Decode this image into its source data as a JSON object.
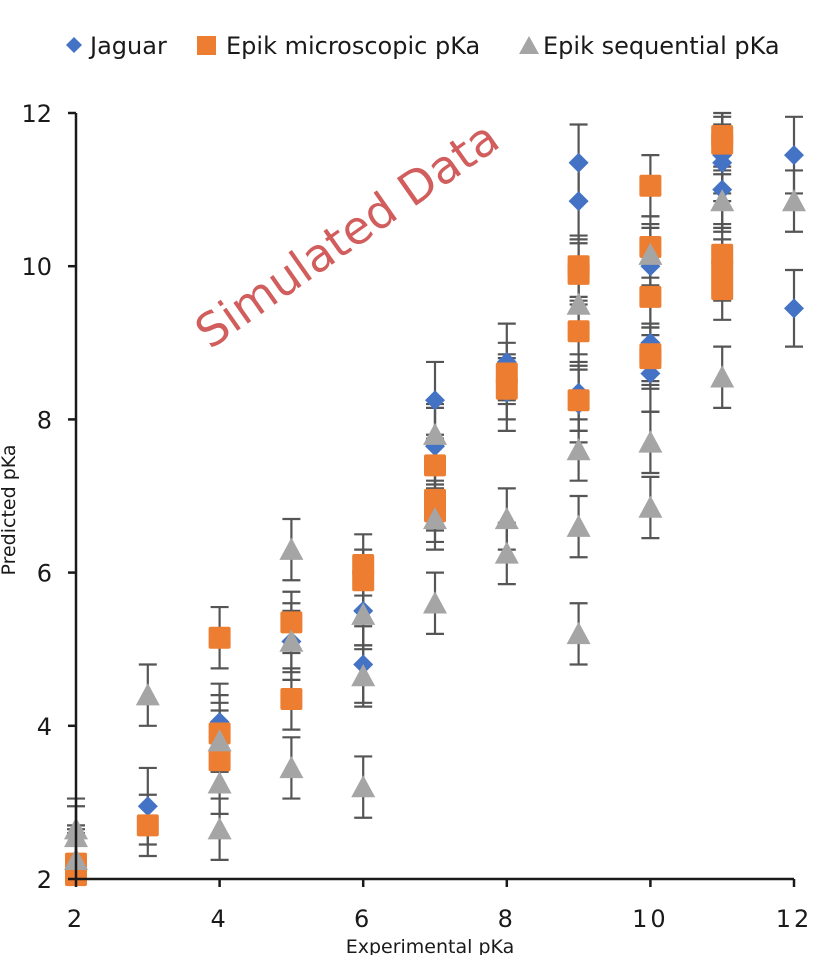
{
  "chart_data": {
    "type": "scatter",
    "title": "",
    "xlabel": "Experimental pKa",
    "ylabel": "Predicted pKa",
    "xlim": [
      2,
      12
    ],
    "ylim": [
      2,
      12
    ],
    "x_ticks": [
      "2",
      "4",
      "6",
      "8",
      "10",
      "12"
    ],
    "y_ticks": [
      "2",
      "4",
      "6",
      "8",
      "10",
      "12"
    ],
    "grid": false,
    "legend_position": "top",
    "watermark": "Simulated Data",
    "series": [
      {
        "name": "Jaguar",
        "color": "#4472c4",
        "marker": "diamond",
        "points": [
          {
            "x": 2,
            "y": 2.2,
            "err": 0.5
          },
          {
            "x": 3,
            "y": 2.95,
            "err": 0.5
          },
          {
            "x": 4,
            "y": 3.9,
            "err": 0.5
          },
          {
            "x": 4,
            "y": 4.05,
            "err": 0.5
          },
          {
            "x": 5,
            "y": 5.1,
            "err": 0.5
          },
          {
            "x": 6,
            "y": 4.8,
            "err": 0.5
          },
          {
            "x": 6,
            "y": 5.5,
            "err": 0.5
          },
          {
            "x": 7,
            "y": 7.65,
            "err": 0.5
          },
          {
            "x": 7,
            "y": 8.25,
            "err": 0.5
          },
          {
            "x": 8,
            "y": 8.75,
            "err": 0.5
          },
          {
            "x": 8,
            "y": 8.35,
            "err": 0.5
          },
          {
            "x": 9,
            "y": 11.35,
            "err": 0.5
          },
          {
            "x": 9,
            "y": 10.85,
            "err": 0.5
          },
          {
            "x": 9,
            "y": 8.35,
            "err": 0.5
          },
          {
            "x": 9,
            "y": 8.2,
            "err": 0.5
          },
          {
            "x": 10,
            "y": 10.0,
            "err": 0.5
          },
          {
            "x": 10,
            "y": 9.0,
            "err": 0.5
          },
          {
            "x": 10,
            "y": 8.6,
            "err": 0.5
          },
          {
            "x": 11,
            "y": 11.45,
            "err": 0.5
          },
          {
            "x": 11,
            "y": 11.35,
            "err": 0.5
          },
          {
            "x": 11,
            "y": 11.0,
            "err": 0.5
          },
          {
            "x": 12,
            "y": 11.45,
            "err": 0.5
          },
          {
            "x": 12,
            "y": 9.45,
            "err": 0.5
          }
        ]
      },
      {
        "name": "Epik microscopic pKa",
        "color": "#ed7d31",
        "marker": "square",
        "points": [
          {
            "x": 2,
            "y": 2.2,
            "err": 0.4
          },
          {
            "x": 2,
            "y": 2.05,
            "err": 0.4
          },
          {
            "x": 3,
            "y": 2.7,
            "err": 0.4
          },
          {
            "x": 4,
            "y": 5.15,
            "err": 0.4
          },
          {
            "x": 4,
            "y": 3.9,
            "err": 0.4
          },
          {
            "x": 4,
            "y": 3.55,
            "err": 0.4
          },
          {
            "x": 5,
            "y": 5.35,
            "err": 0.4
          },
          {
            "x": 5,
            "y": 4.35,
            "err": 0.4
          },
          {
            "x": 6,
            "y": 6.1,
            "err": 0.4
          },
          {
            "x": 6,
            "y": 5.9,
            "err": 0.4
          },
          {
            "x": 7,
            "y": 7.4,
            "err": 0.4
          },
          {
            "x": 7,
            "y": 6.95,
            "err": 0.4
          },
          {
            "x": 7,
            "y": 6.8,
            "err": 0.4
          },
          {
            "x": 8,
            "y": 8.6,
            "err": 0.4
          },
          {
            "x": 8,
            "y": 8.4,
            "err": 0.4
          },
          {
            "x": 9,
            "y": 10.0,
            "err": 0.4
          },
          {
            "x": 9,
            "y": 9.9,
            "err": 0.4
          },
          {
            "x": 9,
            "y": 9.15,
            "err": 0.4
          },
          {
            "x": 9,
            "y": 8.25,
            "err": 0.4
          },
          {
            "x": 10,
            "y": 11.05,
            "err": 0.4
          },
          {
            "x": 10,
            "y": 10.25,
            "err": 0.4
          },
          {
            "x": 10,
            "y": 9.6,
            "err": 0.4
          },
          {
            "x": 10,
            "y": 8.85,
            "err": 0.4
          },
          {
            "x": 10,
            "y": 8.8,
            "err": 0.4
          },
          {
            "x": 11,
            "y": 11.7,
            "err": 0.4
          },
          {
            "x": 11,
            "y": 11.6,
            "err": 0.4
          },
          {
            "x": 11,
            "y": 10.15,
            "err": 0.4
          },
          {
            "x": 11,
            "y": 9.95,
            "err": 0.4
          },
          {
            "x": 11,
            "y": 9.7,
            "err": 0.4
          }
        ]
      },
      {
        "name": "Epik sequential pKa",
        "color": "#a5a5a5",
        "marker": "triangle",
        "points": [
          {
            "x": 2,
            "y": 2.65,
            "err": 0.4
          },
          {
            "x": 2,
            "y": 2.55,
            "err": 0.4
          },
          {
            "x": 2,
            "y": 2.25,
            "err": 0.4
          },
          {
            "x": 3,
            "y": 4.4,
            "err": 0.4
          },
          {
            "x": 4,
            "y": 3.8,
            "err": 0.4
          },
          {
            "x": 4,
            "y": 3.25,
            "err": 0.4
          },
          {
            "x": 4,
            "y": 2.65,
            "err": 0.4
          },
          {
            "x": 5,
            "y": 6.3,
            "err": 0.4
          },
          {
            "x": 5,
            "y": 5.1,
            "err": 0.4
          },
          {
            "x": 5,
            "y": 3.45,
            "err": 0.4
          },
          {
            "x": 6,
            "y": 5.45,
            "err": 0.4
          },
          {
            "x": 6,
            "y": 4.65,
            "err": 0.4
          },
          {
            "x": 6,
            "y": 3.2,
            "err": 0.4
          },
          {
            "x": 7,
            "y": 7.8,
            "err": 0.4
          },
          {
            "x": 7,
            "y": 6.7,
            "err": 0.4
          },
          {
            "x": 7,
            "y": 5.6,
            "err": 0.4
          },
          {
            "x": 8,
            "y": 6.7,
            "err": 0.4
          },
          {
            "x": 8,
            "y": 6.25,
            "err": 0.4
          },
          {
            "x": 9,
            "y": 9.5,
            "err": 0.4
          },
          {
            "x": 9,
            "y": 7.6,
            "err": 0.4
          },
          {
            "x": 9,
            "y": 6.6,
            "err": 0.4
          },
          {
            "x": 9,
            "y": 5.2,
            "err": 0.4
          },
          {
            "x": 10,
            "y": 10.15,
            "err": 0.4
          },
          {
            "x": 10,
            "y": 7.7,
            "err": 0.4
          },
          {
            "x": 10,
            "y": 6.85,
            "err": 0.4
          },
          {
            "x": 11,
            "y": 10.85,
            "err": 0.4
          },
          {
            "x": 11,
            "y": 8.55,
            "err": 0.4
          },
          {
            "x": 12,
            "y": 10.85,
            "err": 0.4
          }
        ]
      }
    ]
  }
}
